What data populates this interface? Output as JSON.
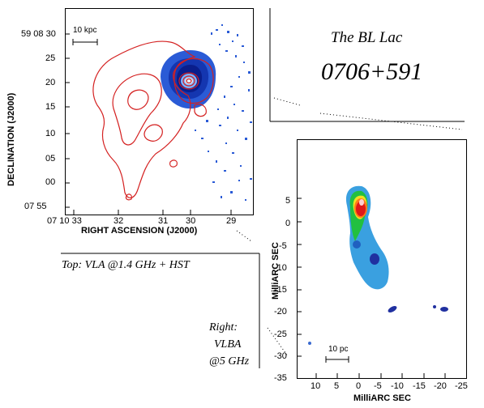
{
  "title": {
    "line1": "The BL Lac",
    "line2": "0706+591"
  },
  "captions": {
    "top": "Top: VLA @1.4 GHz + HST",
    "right_line1": "Right:",
    "right_line2": "VLBA",
    "right_line3": "@5 GHz"
  },
  "vla_panel": {
    "xlabel": "RIGHT ASCENSION (J2000)",
    "ylabel": "DECLINATION (J2000)",
    "scalebar": "10 kpc",
    "x_ticks": [
      "07 10 33",
      "32",
      "31",
      "30",
      "29"
    ],
    "y_ticks": [
      "59 08 30",
      "25",
      "20",
      "15",
      "10",
      "05",
      "00",
      "07 55"
    ],
    "colors": {
      "contour": "#d42020",
      "hst_fill": "#2a5bd6",
      "hst_dark": "#0a1e8c",
      "hst_light": "#7fb2ff"
    }
  },
  "vlba_panel": {
    "xlabel": "MilliARC SEC",
    "ylabel": "MilliARC SEC",
    "scalebar": "10 pc",
    "x_ticks": [
      "10",
      "5",
      "0",
      "-5",
      "-10",
      "-15",
      "-20",
      "-25"
    ],
    "y_ticks": [
      "5",
      "0",
      "-5",
      "-10",
      "-15",
      "-20",
      "-25",
      "-30",
      "-35"
    ],
    "colors": {
      "core": "#e01818",
      "jet_mid": "#22c040",
      "jet_outer": "#3aa0e0",
      "knot": "#2030a0"
    }
  }
}
